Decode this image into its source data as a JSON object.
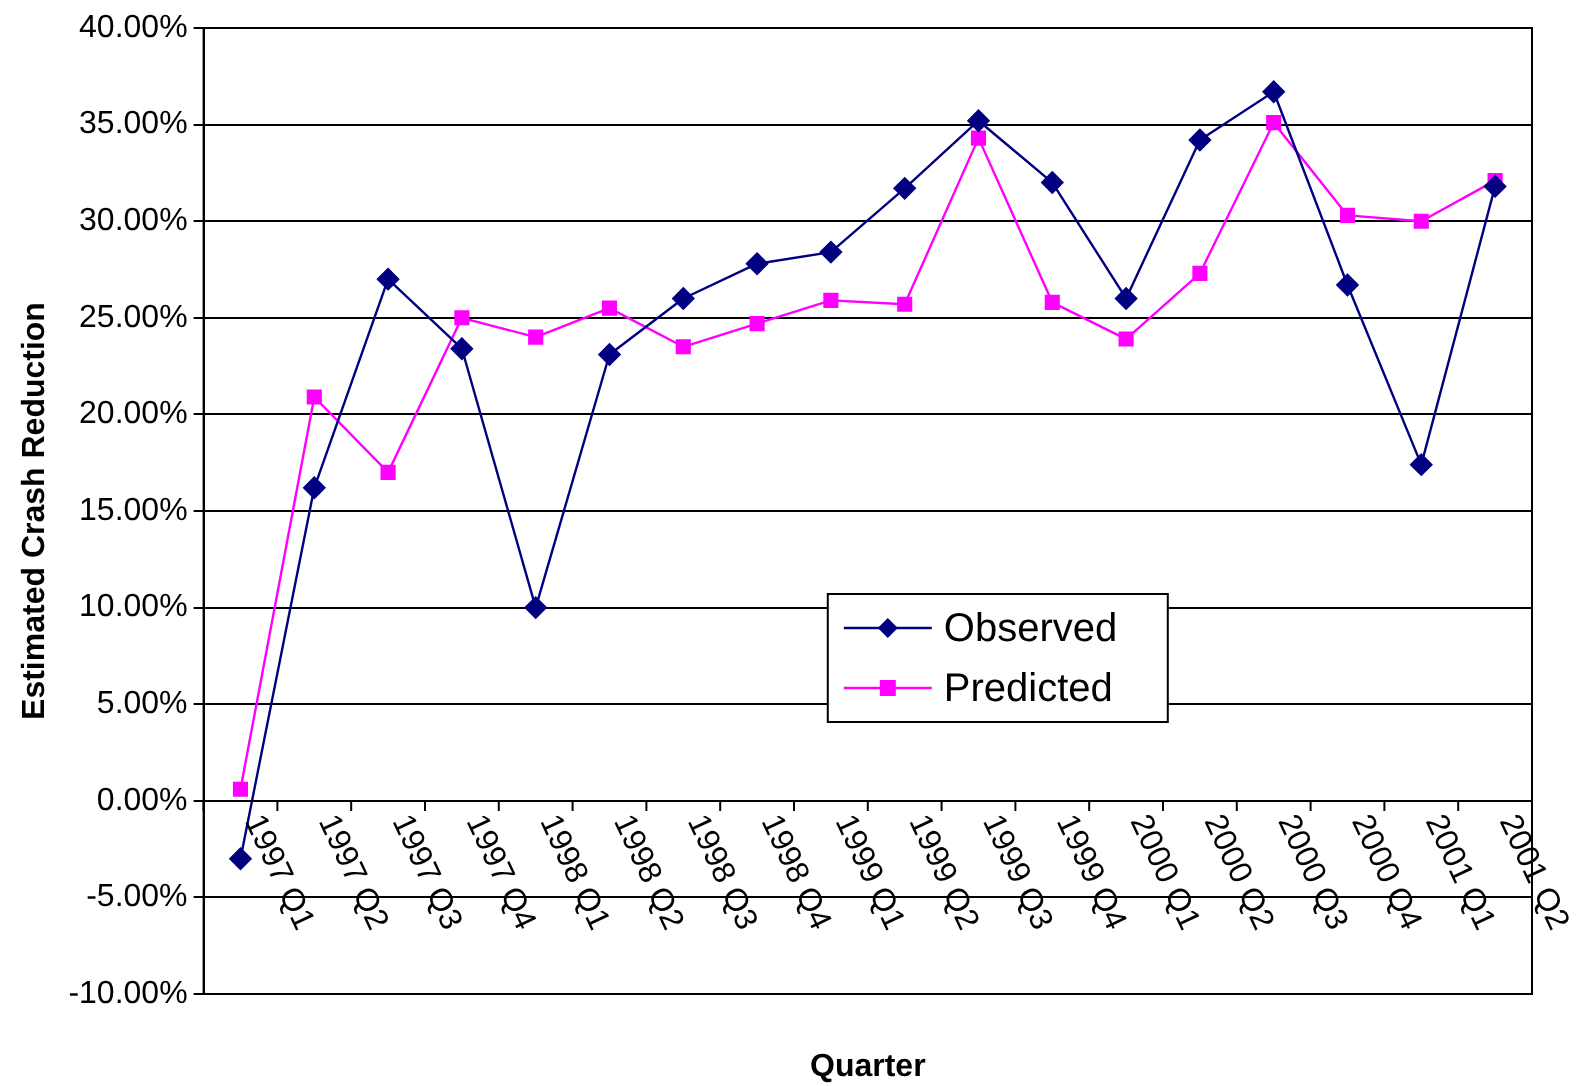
{
  "chart_data": {
    "type": "line",
    "xlabel": "Quarter",
    "ylabel": "Estimated Crash Reduction",
    "categories": [
      "1997 Q1",
      "1997 Q2",
      "1997 Q3",
      "1997 Q4",
      "1998 Q1",
      "1998 Q2",
      "1998 Q3",
      "1998 Q4",
      "1999 Q1",
      "1999 Q2",
      "1999 Q3",
      "1999 Q4",
      "2000 Q1",
      "2000 Q2",
      "2000 Q3",
      "2000 Q4",
      "2001 Q1",
      "2001 Q2"
    ],
    "series": [
      {
        "name": "Observed",
        "color": "#000080",
        "marker": "diamond",
        "values": [
          -3.0,
          16.2,
          27.0,
          23.4,
          10.0,
          23.1,
          26.0,
          27.8,
          28.4,
          31.7,
          35.2,
          32.0,
          26.0,
          34.2,
          36.7,
          26.7,
          17.4,
          31.8
        ]
      },
      {
        "name": "Predicted",
        "color": "#ff00ff",
        "marker": "square",
        "values": [
          0.6,
          20.9,
          17.0,
          25.0,
          24.0,
          25.5,
          23.5,
          24.7,
          25.9,
          25.7,
          34.3,
          25.8,
          23.9,
          27.3,
          35.1,
          30.3,
          30.0,
          32.1
        ]
      }
    ],
    "ylim": [
      -10,
      40
    ],
    "yticks": [
      {
        "value": -10,
        "label": "-10.00%"
      },
      {
        "value": -5,
        "label": "-5.00%"
      },
      {
        "value": 0,
        "label": "0.00%"
      },
      {
        "value": 5,
        "label": "5.00%"
      },
      {
        "value": 10,
        "label": "10.00%"
      },
      {
        "value": 15,
        "label": "15.00%"
      },
      {
        "value": 20,
        "label": "20.00%"
      },
      {
        "value": 25,
        "label": "25.00%"
      },
      {
        "value": 30,
        "label": "30.00%"
      },
      {
        "value": 35,
        "label": "35.00%"
      },
      {
        "value": 40,
        "label": "40.00%"
      }
    ],
    "grid": "y",
    "legend": "bottom",
    "line_style": "solid"
  }
}
